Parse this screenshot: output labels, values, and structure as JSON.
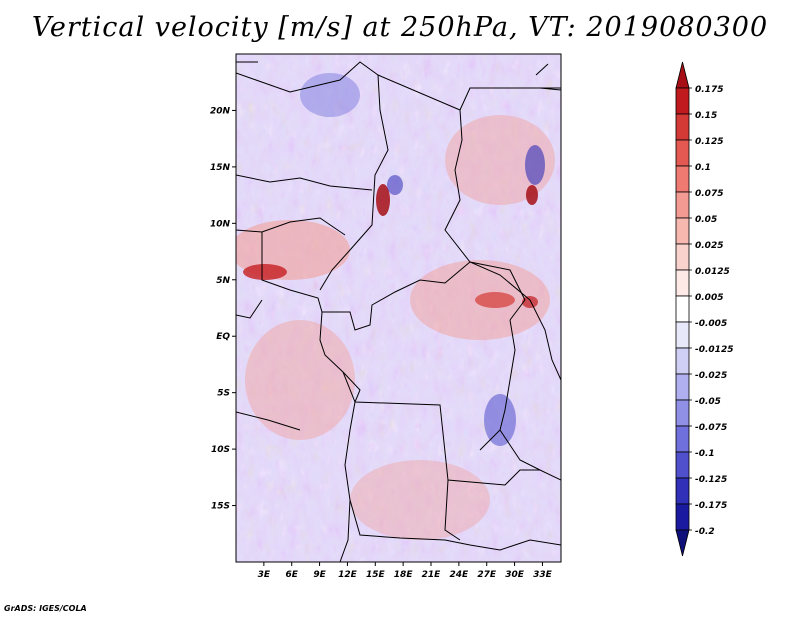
{
  "title": "Vertical velocity [m/s] at 250hPa, VT: 2019080300",
  "credit": "GrADS: IGES/COLA",
  "map": {
    "lat_labels": [
      "20N",
      "15N",
      "10N",
      "5N",
      "EQ",
      "5S",
      "10S",
      "15S"
    ],
    "lat_values": [
      20,
      15,
      10,
      5,
      0,
      -5,
      -10,
      -15
    ],
    "lon_labels": [
      "3E",
      "6E",
      "9E",
      "12E",
      "15E",
      "18E",
      "21E",
      "24E",
      "27E",
      "30E",
      "33E"
    ],
    "lon_values": [
      3,
      6,
      9,
      12,
      15,
      18,
      21,
      24,
      27,
      30,
      33
    ],
    "lon_range": [
      0,
      35
    ],
    "lat_range": [
      -20,
      25
    ]
  },
  "colorbar": {
    "labels": [
      "0.175",
      "0.15",
      "0.125",
      "0.1",
      "0.075",
      "0.05",
      "0.025",
      "0.0125",
      "0.005",
      "-0.005",
      "-0.0125",
      "-0.025",
      "-0.05",
      "-0.075",
      "-0.1",
      "-0.125",
      "-0.175",
      "-0.2"
    ],
    "colors": [
      "#a50f15",
      "#c01a1e",
      "#d43a35",
      "#e45a52",
      "#ee7a72",
      "#f39b92",
      "#f7b8b0",
      "#fad2cd",
      "#fde9e6",
      "#ffffff",
      "#e8e8fb",
      "#cfcff6",
      "#b0b0f0",
      "#9090e6",
      "#7070dc",
      "#5050cc",
      "#3030b8",
      "#1a1aa0",
      "#10107a"
    ]
  }
}
